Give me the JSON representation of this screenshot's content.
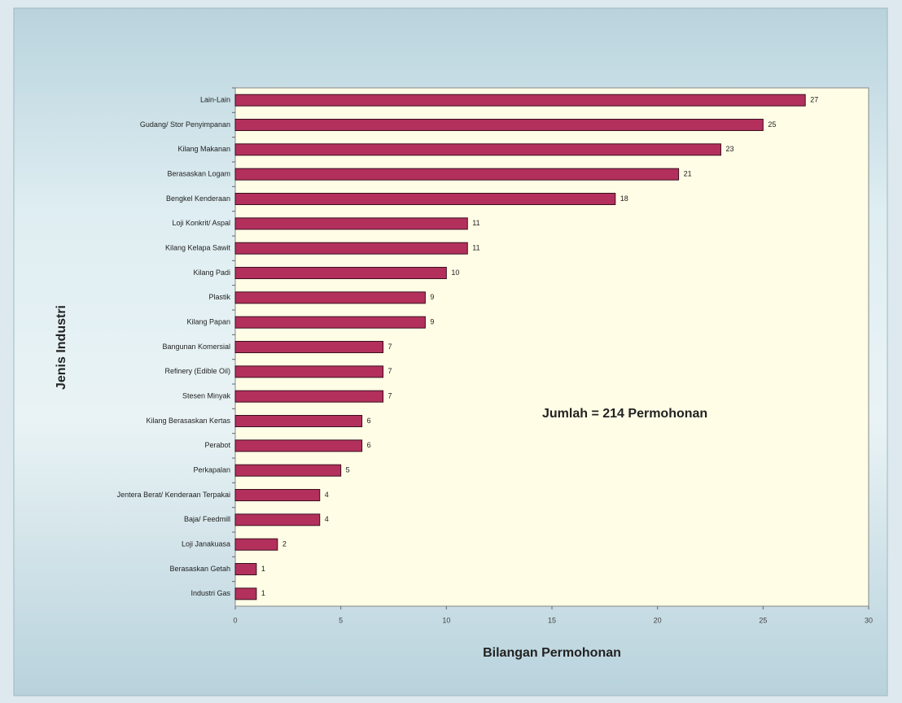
{
  "chart_data": {
    "type": "bar",
    "orientation": "horizontal",
    "categories": [
      "Lain-Lain",
      "Gudang/ Stor Penyimpanan",
      "Kilang Makanan",
      "Berasaskan Logam",
      "Bengkel Kenderaan",
      "Loji Konkrit/ Aspal",
      "Kilang Kelapa Sawit",
      "Kilang Padi",
      "Plastik",
      "Kilang Papan",
      "Bangunan Komersial",
      "Refinery (Edible Oil)",
      "Stesen Minyak",
      "Kilang Berasaskan Kertas",
      "Perabot",
      "Perkapalan",
      "Jentera Berat/ Kenderaan Terpakai",
      "Baja/ Feedmill",
      "Loji Janakuasa",
      "Berasaskan Getah",
      "Industri Gas"
    ],
    "values": [
      27,
      25,
      23,
      21,
      18,
      11,
      11,
      10,
      9,
      9,
      7,
      7,
      7,
      6,
      6,
      5,
      4,
      4,
      2,
      1,
      1
    ],
    "color": "#b3305c",
    "xlim": [
      0,
      30
    ],
    "xticks": [
      0,
      5,
      10,
      15,
      20,
      25,
      30
    ],
    "xlabel": "Bilangan Permohonan",
    "ylabel": "Jenis Industri",
    "annotation": "Jumlah = 214 Permohonan",
    "grid": false
  }
}
